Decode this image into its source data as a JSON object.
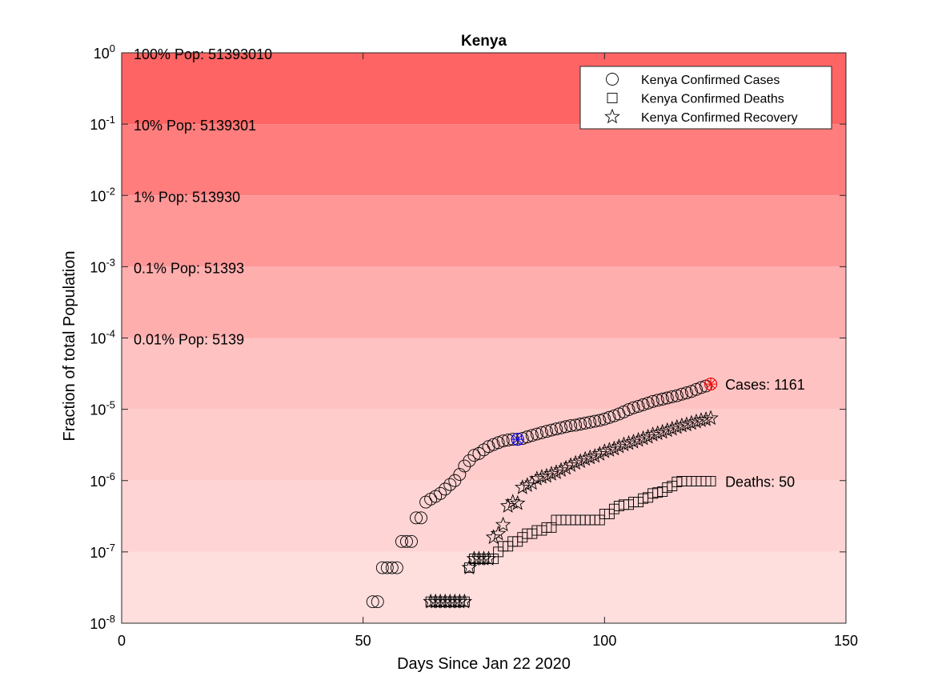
{
  "chart_data": {
    "type": "scatter",
    "title": "Kenya",
    "xlabel": "Days Since Jan 22 2020",
    "ylabel": "Fraction of total Population",
    "xlim": [
      0,
      150
    ],
    "ylim": [
      1e-08,
      1
    ],
    "yscale": "log",
    "x_ticks": [
      0,
      50,
      100,
      150
    ],
    "y_ticks": [
      {
        "value": 1e-08,
        "base": "10",
        "exp": "-8"
      },
      {
        "value": 1e-07,
        "base": "10",
        "exp": "-7"
      },
      {
        "value": 1e-06,
        "base": "10",
        "exp": "-6"
      },
      {
        "value": 1e-05,
        "base": "10",
        "exp": "-5"
      },
      {
        "value": 0.0001,
        "base": "10",
        "exp": "-4"
      },
      {
        "value": 0.001,
        "base": "10",
        "exp": "-3"
      },
      {
        "value": 0.01,
        "base": "10",
        "exp": "-2"
      },
      {
        "value": 0.1,
        "base": "10",
        "exp": "-1"
      },
      {
        "value": 1,
        "base": "10",
        "exp": "0"
      }
    ],
    "population": 51393010,
    "bands": [
      {
        "label": "100% Pop: 51393010",
        "lower": 0.1,
        "upper": 1,
        "color": "#ff6464"
      },
      {
        "label": "10% Pop: 5139301",
        "lower": 0.01,
        "upper": 0.1,
        "color": "#ff7d7d"
      },
      {
        "label": "1% Pop: 513930",
        "lower": 0.001,
        "upper": 0.01,
        "color": "#ff9797"
      },
      {
        "label": "0.1% Pop: 51393",
        "lower": 0.0001,
        "upper": 0.001,
        "color": "#ffaeae"
      },
      {
        "label": "0.01% Pop: 5139",
        "lower": 1e-05,
        "upper": 0.0001,
        "color": "#ffc2c2"
      },
      {
        "label": "",
        "lower": 1e-06,
        "upper": 1e-05,
        "color": "#ffcccc"
      },
      {
        "label": "",
        "lower": 1e-07,
        "upper": 1e-06,
        "color": "#ffd4d4"
      },
      {
        "label": "",
        "lower": 1e-08,
        "upper": 1e-07,
        "color": "#ffdede"
      }
    ],
    "legend": {
      "position": "top-right",
      "entries": [
        {
          "label": "Kenya Confirmed Cases",
          "marker": "circle"
        },
        {
          "label": "Kenya Confirmed Deaths",
          "marker": "square"
        },
        {
          "label": "Kenya Confirmed Recovery",
          "marker": "star"
        }
      ]
    },
    "series": [
      {
        "name": "Kenya Confirmed Cases",
        "marker": "circle",
        "x": [
          52,
          53,
          54,
          55,
          56,
          57,
          58,
          59,
          60,
          61,
          62,
          63,
          64,
          65,
          66,
          67,
          68,
          69,
          70,
          71,
          72,
          73,
          74,
          75,
          76,
          77,
          78,
          79,
          80,
          81,
          82,
          83,
          84,
          85,
          86,
          87,
          88,
          89,
          90,
          91,
          92,
          93,
          94,
          95,
          96,
          97,
          98,
          99,
          100,
          101,
          102,
          103,
          104,
          105,
          106,
          107,
          108,
          109,
          110,
          111,
          112,
          113,
          114,
          115,
          116,
          117,
          118,
          119,
          120,
          121,
          122
        ],
        "y": [
          2e-08,
          2e-08,
          6e-08,
          6e-08,
          6e-08,
          6e-08,
          1.4e-07,
          1.4e-07,
          1.4e-07,
          3e-07,
          3e-07,
          5e-07,
          5.5e-07,
          6e-07,
          6.6e-07,
          7.6e-07,
          8.8e-07,
          1e-06,
          1.22e-06,
          1.6e-06,
          1.9e-06,
          2.26e-06,
          2.4e-06,
          2.7e-06,
          3e-06,
          3.2e-06,
          3.4e-06,
          3.6e-06,
          3.7e-06,
          3.8e-06,
          3.8e-06,
          3.9e-06,
          4.1e-06,
          4.3e-06,
          4.5e-06,
          4.7e-06,
          4.9e-06,
          5.1e-06,
          5.3e-06,
          5.5e-06,
          5.7e-06,
          5.9e-06,
          6e-06,
          6.2e-06,
          6.4e-06,
          6.6e-06,
          6.8e-06,
          7e-06,
          7.3e-06,
          7.7e-06,
          8.1e-06,
          8.6e-06,
          9.2e-06,
          9.9e-06,
          1.05e-05,
          1.1e-05,
          1.16e-05,
          1.22e-05,
          1.29e-05,
          1.34e-05,
          1.39e-05,
          1.44e-05,
          1.5e-05,
          1.55e-05,
          1.63e-05,
          1.7e-05,
          1.78e-05,
          1.9e-05,
          2.02e-05,
          2.12e-05,
          2.26e-05
        ]
      },
      {
        "name": "Kenya Confirmed Deaths",
        "marker": "square",
        "x": [
          64,
          65,
          66,
          67,
          68,
          69,
          70,
          71,
          72,
          73,
          74,
          75,
          76,
          77,
          78,
          79,
          80,
          81,
          82,
          83,
          84,
          85,
          86,
          87,
          88,
          89,
          90,
          91,
          92,
          93,
          94,
          95,
          96,
          97,
          98,
          99,
          100,
          101,
          102,
          103,
          104,
          105,
          106,
          107,
          108,
          109,
          110,
          111,
          112,
          113,
          114,
          115,
          116,
          117,
          118,
          119,
          120,
          121,
          122
        ],
        "y": [
          2e-08,
          2e-08,
          2e-08,
          2e-08,
          2e-08,
          2e-08,
          2e-08,
          2e-08,
          6e-08,
          8e-08,
          8e-08,
          8e-08,
          8e-08,
          8e-08,
          1e-07,
          1.2e-07,
          1.2e-07,
          1.4e-07,
          1.4e-07,
          1.6e-07,
          1.8e-07,
          1.8e-07,
          2e-07,
          2e-07,
          2.2e-07,
          2.2e-07,
          2.8e-07,
          2.8e-07,
          2.8e-07,
          2.8e-07,
          2.8e-07,
          2.8e-07,
          2.8e-07,
          2.8e-07,
          2.8e-07,
          2.8e-07,
          3.4e-07,
          3.4e-07,
          4e-07,
          4.4e-07,
          4.6e-07,
          4.6e-07,
          5e-07,
          5e-07,
          5.6e-07,
          5.8e-07,
          6.6e-07,
          6.8e-07,
          7e-07,
          8e-07,
          8.4e-07,
          9.6e-07,
          9.8e-07,
          9.8e-07,
          9.8e-07,
          9.8e-07,
          9.8e-07,
          9.8e-07,
          9.8e-07
        ]
      },
      {
        "name": "Kenya Confirmed Recovery",
        "marker": "star",
        "x": [
          64,
          65,
          66,
          67,
          68,
          69,
          70,
          71,
          72,
          73,
          74,
          75,
          76,
          77,
          78,
          79,
          80,
          81,
          82,
          83,
          84,
          85,
          86,
          87,
          88,
          89,
          90,
          91,
          92,
          93,
          94,
          95,
          96,
          97,
          98,
          99,
          100,
          101,
          102,
          103,
          104,
          105,
          106,
          107,
          108,
          109,
          110,
          111,
          112,
          113,
          114,
          115,
          116,
          117,
          118,
          119,
          120,
          121,
          122
        ],
        "y": [
          2e-08,
          2e-08,
          2e-08,
          2e-08,
          2e-08,
          2e-08,
          2e-08,
          2e-08,
          6e-08,
          8e-08,
          8e-08,
          8e-08,
          8e-08,
          1.6e-07,
          1.8e-07,
          2.4e-07,
          4.4e-07,
          5e-07,
          4.8e-07,
          8e-07,
          8.6e-07,
          9.2e-07,
          1.06e-06,
          1.12e-06,
          1.16e-06,
          1.24e-06,
          1.3e-06,
          1.4e-06,
          1.5e-06,
          1.64e-06,
          1.76e-06,
          1.86e-06,
          2e-06,
          2.1e-06,
          2.2e-06,
          2.36e-06,
          2.56e-06,
          2.68e-06,
          2.8e-06,
          3e-06,
          3.2e-06,
          3.34e-06,
          3.5e-06,
          3.7e-06,
          3.9e-06,
          4.1e-06,
          4.4e-06,
          4.6e-06,
          4.8e-06,
          5.06e-06,
          5.3e-06,
          5.6e-06,
          5.9e-06,
          6.1e-06,
          6.4e-06,
          6.7e-06,
          7e-06,
          7.2e-06,
          7.5e-06
        ]
      }
    ],
    "highlights": [
      {
        "series": "Kenya Confirmed Cases",
        "x": 82,
        "y": 3.8e-06,
        "color": "#0000ff"
      },
      {
        "series": "Kenya Confirmed Cases",
        "x": 122,
        "y": 2.26e-05,
        "color": "#ff0000"
      }
    ],
    "annotations": [
      {
        "text": "Cases: 1161",
        "x": 122,
        "y": 2.26e-05
      },
      {
        "text": "Deaths: 50",
        "x": 122,
        "y": 9.8e-07
      }
    ]
  }
}
